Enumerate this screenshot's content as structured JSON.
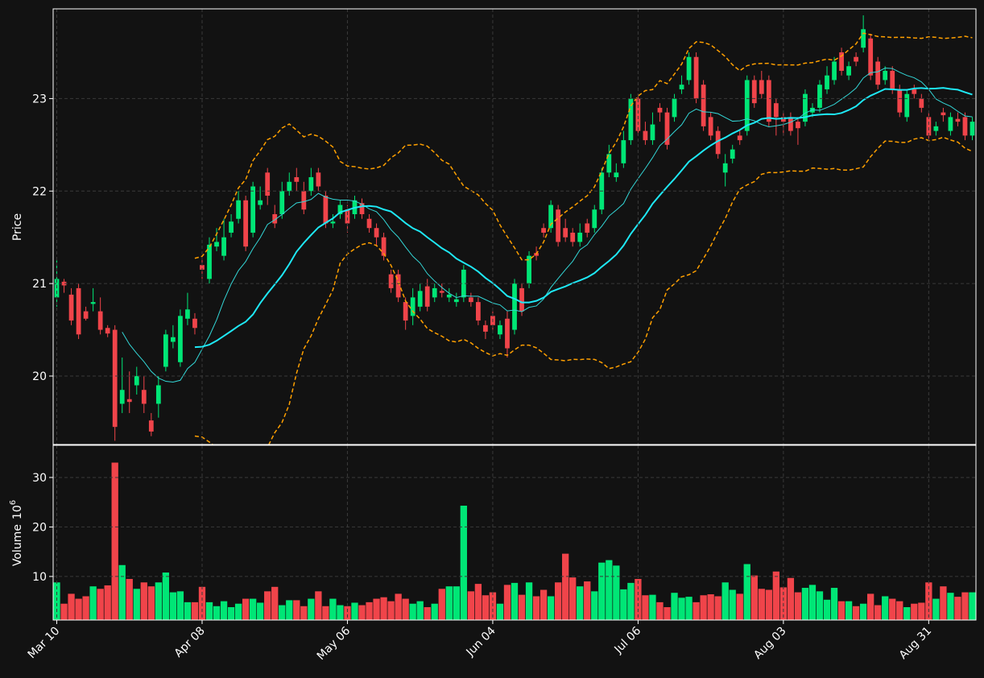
{
  "chart_data": {
    "type": "candlestick",
    "ylabel": "Price",
    "volume_label": "Volume",
    "volume_base": "10",
    "volume_exponent": "6",
    "categories": [
      "Mar 10",
      null,
      null,
      null,
      null,
      null,
      null,
      null,
      null,
      null,
      null,
      null,
      null,
      null,
      null,
      null,
      null,
      null,
      null,
      null,
      "Apr 08",
      null,
      null,
      null,
      null,
      null,
      null,
      null,
      null,
      null,
      null,
      null,
      null,
      null,
      null,
      null,
      null,
      null,
      null,
      null,
      "May 06",
      null,
      null,
      null,
      null,
      null,
      null,
      null,
      null,
      null,
      null,
      null,
      null,
      null,
      null,
      null,
      null,
      null,
      null,
      null,
      "Jun 04",
      null,
      null,
      null,
      null,
      null,
      null,
      null,
      null,
      null,
      null,
      null,
      null,
      null,
      null,
      null,
      null,
      null,
      null,
      null,
      "Jul 06",
      null,
      null,
      null,
      null,
      null,
      null,
      null,
      null,
      null,
      null,
      null,
      null,
      null,
      null,
      null,
      null,
      null,
      null,
      null,
      "Aug 03",
      null,
      null,
      null,
      null,
      null,
      null,
      null,
      null,
      null,
      null,
      null,
      null,
      null,
      null,
      null,
      null,
      null,
      null,
      null,
      "Aug 31",
      null,
      null,
      null,
      null,
      null,
      null
    ],
    "open": [
      20.85,
      21.02,
      20.88,
      20.95,
      20.7,
      20.78,
      20.7,
      20.52,
      20.5,
      19.7,
      19.75,
      19.9,
      19.85,
      19.52,
      19.7,
      20.1,
      20.37,
      20.15,
      20.62,
      20.62,
      21.2,
      21.05,
      21.4,
      21.3,
      21.55,
      21.7,
      21.9,
      21.55,
      21.85,
      22.2,
      21.75,
      21.75,
      22.0,
      22.15,
      22.0,
      22.0,
      22.2,
      21.95,
      21.65,
      21.75,
      21.8,
      21.75,
      21.87,
      21.7,
      21.6,
      21.5,
      21.1,
      21.1,
      20.8,
      20.65,
      20.75,
      20.97,
      20.85,
      20.92,
      20.85,
      20.8,
      20.85,
      20.85,
      20.8,
      20.55,
      20.65,
      20.45,
      20.62,
      20.5,
      20.95,
      21.0,
      21.33,
      21.6,
      21.6,
      21.8,
      21.6,
      21.55,
      21.45,
      21.65,
      21.6,
      21.8,
      22.2,
      22.15,
      22.3,
      22.55,
      23.0,
      22.65,
      22.55,
      22.9,
      22.85,
      22.8,
      23.1,
      23.2,
      23.45,
      23.15,
      22.8,
      22.65,
      22.2,
      22.35,
      22.6,
      22.65,
      23.2,
      23.2,
      23.2,
      22.95,
      22.8,
      22.8,
      22.75,
      22.75,
      22.85,
      22.9,
      23.1,
      23.2,
      23.5,
      23.25,
      23.45,
      23.55,
      23.65,
      23.4,
      23.2,
      23.3,
      23.1,
      22.8,
      23.1,
      23.0,
      22.8,
      22.65,
      22.85,
      22.65,
      22.78,
      22.8,
      22.6
    ],
    "high": [
      21.25,
      21.05,
      20.95,
      21.0,
      20.75,
      20.95,
      20.85,
      20.55,
      20.55,
      20.2,
      20.05,
      20.1,
      20.0,
      19.6,
      20.0,
      20.5,
      20.55,
      20.72,
      20.9,
      20.68,
      21.3,
      21.5,
      21.6,
      21.7,
      21.75,
      22.0,
      21.95,
      22.1,
      22.05,
      22.25,
      21.85,
      22.1,
      22.2,
      22.25,
      22.1,
      22.25,
      22.25,
      22.0,
      21.75,
      21.9,
      21.85,
      21.95,
      21.92,
      21.75,
      21.65,
      21.55,
      21.15,
      21.15,
      20.85,
      20.95,
      21.0,
      21.05,
      21.0,
      21.0,
      20.95,
      20.9,
      21.2,
      20.9,
      20.85,
      20.6,
      20.7,
      20.6,
      20.7,
      21.05,
      21.0,
      21.35,
      21.4,
      21.65,
      21.9,
      21.85,
      21.7,
      21.6,
      21.65,
      21.7,
      21.85,
      22.25,
      22.5,
      22.3,
      22.65,
      23.05,
      23.05,
      22.75,
      22.85,
      22.95,
      22.9,
      23.05,
      23.25,
      23.5,
      23.5,
      23.2,
      22.85,
      22.7,
      22.4,
      22.5,
      22.65,
      23.25,
      23.25,
      23.3,
      23.25,
      23.0,
      22.85,
      22.85,
      22.8,
      23.1,
      22.95,
      23.2,
      23.35,
      23.45,
      23.55,
      23.4,
      23.5,
      23.9,
      23.7,
      23.45,
      23.35,
      23.35,
      23.15,
      23.1,
      23.15,
      23.05,
      22.85,
      22.75,
      22.9,
      22.85,
      22.85,
      22.85,
      22.8
    ],
    "low": [
      20.75,
      20.9,
      20.55,
      20.4,
      20.6,
      20.7,
      20.45,
      20.42,
      19.3,
      19.6,
      19.6,
      19.8,
      19.6,
      19.35,
      19.55,
      20.05,
      20.3,
      20.1,
      20.55,
      20.45,
      21.05,
      21.0,
      21.35,
      21.25,
      21.5,
      21.65,
      21.35,
      21.5,
      21.8,
      21.85,
      21.6,
      21.7,
      21.95,
      22.0,
      21.75,
      21.95,
      22.0,
      21.6,
      21.6,
      21.7,
      21.55,
      21.7,
      21.7,
      21.55,
      21.4,
      21.25,
      20.9,
      20.8,
      20.5,
      20.55,
      20.7,
      20.7,
      20.8,
      20.85,
      20.8,
      20.75,
      20.8,
      20.75,
      20.55,
      20.4,
      20.5,
      20.4,
      20.2,
      20.45,
      20.65,
      20.95,
      21.25,
      21.5,
      21.55,
      21.4,
      21.45,
      21.4,
      21.4,
      21.5,
      21.55,
      21.75,
      22.15,
      22.1,
      22.25,
      22.5,
      22.6,
      22.5,
      22.5,
      22.75,
      22.45,
      22.75,
      23.05,
      23.15,
      22.95,
      22.65,
      22.55,
      22.35,
      22.05,
      22.3,
      22.5,
      22.6,
      22.9,
      23.0,
      22.7,
      22.6,
      22.6,
      22.6,
      22.5,
      22.7,
      22.8,
      22.85,
      23.05,
      23.15,
      23.25,
      23.2,
      23.35,
      23.5,
      23.2,
      23.1,
      23.15,
      23.05,
      22.8,
      22.75,
      23.0,
      22.85,
      22.55,
      22.6,
      22.75,
      22.6,
      22.7,
      22.55,
      22.55
    ],
    "close": [
      21.05,
      20.98,
      20.6,
      20.45,
      20.62,
      20.8,
      20.5,
      20.46,
      19.45,
      19.85,
      19.72,
      20.0,
      19.7,
      19.4,
      19.9,
      20.45,
      20.42,
      20.65,
      20.72,
      20.52,
      21.15,
      21.42,
      21.45,
      21.5,
      21.67,
      21.9,
      21.4,
      22.05,
      21.9,
      21.95,
      21.65,
      22.0,
      22.1,
      22.1,
      21.8,
      22.15,
      22.05,
      21.65,
      21.67,
      21.85,
      21.65,
      21.9,
      21.75,
      21.6,
      21.5,
      21.3,
      20.95,
      20.85,
      20.6,
      20.85,
      20.92,
      20.75,
      20.95,
      20.9,
      20.88,
      20.83,
      21.15,
      20.8,
      20.6,
      20.48,
      20.55,
      20.55,
      20.3,
      21.0,
      20.7,
      21.3,
      21.3,
      21.55,
      21.85,
      21.45,
      21.5,
      21.45,
      21.55,
      21.55,
      21.8,
      22.2,
      22.4,
      22.2,
      22.55,
      23.0,
      22.65,
      22.55,
      22.72,
      22.85,
      22.5,
      23.0,
      23.15,
      23.45,
      23.0,
      22.7,
      22.6,
      22.4,
      22.3,
      22.45,
      22.55,
      23.2,
      22.95,
      23.05,
      22.75,
      22.8,
      22.75,
      22.65,
      22.68,
      23.05,
      22.9,
      23.15,
      23.25,
      23.4,
      23.3,
      23.35,
      23.4,
      23.75,
      23.25,
      23.15,
      23.3,
      23.1,
      22.85,
      23.05,
      23.05,
      22.9,
      22.6,
      22.7,
      22.82,
      22.8,
      22.75,
      22.6,
      22.75
    ],
    "volume": [
      8.8,
      4.5,
      6.5,
      5.5,
      6,
      8,
      7.5,
      8.2,
      33,
      12.3,
      9.5,
      7.5,
      8.8,
      8,
      8.8,
      10.8,
      6.8,
      7,
      4.8,
      4.8,
      7.9,
      4.8,
      4,
      5,
      3.8,
      4.5,
      5.5,
      5.5,
      4.7,
      7,
      7.9,
      4.2,
      5.2,
      5.2,
      4,
      5.5,
      7,
      4,
      5.5,
      4.2,
      4,
      4.7,
      4.2,
      4.8,
      5.5,
      5.8,
      5,
      6.5,
      5.5,
      4.5,
      5,
      3.8,
      4.5,
      7.5,
      8,
      8,
      24.3,
      7,
      8.5,
      6.2,
      6.8,
      4.5,
      8.3,
      8.7,
      6.3,
      8.8,
      6,
      7.3,
      6,
      8.8,
      14.6,
      9.8,
      8,
      9,
      7,
      12.8,
      13.3,
      12.2,
      7.4,
      8.7,
      9.5,
      6.2,
      6.3,
      4.8,
      3.8,
      6.7,
      5.7,
      5.9,
      4.8,
      6.2,
      6.4,
      6,
      8.8,
      7.3,
      6.5,
      12.5,
      10.2,
      7.5,
      7.3,
      11,
      7.8,
      9.7,
      6.8,
      7.7,
      8.3,
      7,
      5.3,
      7.7,
      5,
      5,
      4,
      4.5,
      6.5,
      4.2,
      6,
      5.5,
      5,
      3.8,
      4.5,
      4.7,
      8.8,
      5.5,
      8,
      6.7,
      5.9,
      6.8,
      6.8
    ],
    "ylim": [
      19.26,
      23.97
    ],
    "yticks": [
      20,
      21,
      22,
      23
    ],
    "volume_ylim": [
      1.2,
      36.5
    ],
    "volume_yticks": [
      10,
      20,
      30
    ],
    "grid": true,
    "up_color": "#00e676",
    "down_color": "#f0444a",
    "moving_averages": [
      10,
      20
    ],
    "ma_colors": [
      "#33d6d6",
      "#1ee8f5"
    ],
    "band_period": 20,
    "band_std": 2,
    "band_color": "#ffa000"
  }
}
